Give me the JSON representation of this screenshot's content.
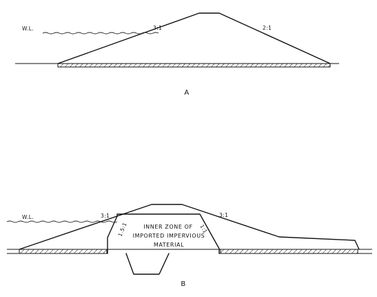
{
  "diagram_a": {
    "water_level_label": "W.L.",
    "upstream_slope_label": "3:1",
    "downstream_slope_label": "2:1",
    "caption": "A"
  },
  "diagram_b": {
    "water_level_label": "W.L.",
    "upstream_slope_label": "3:1",
    "downstream_slope_label": "3:1",
    "core_upstream_slope_label": "1.5:1",
    "core_downstream_slope_label": "1:1",
    "inner_zone_line1": "INNER ZONE OF",
    "inner_zone_line2": "IMPORTED IMPERVIOUS",
    "inner_zone_line3": "MATERIAL",
    "caption": "B"
  }
}
